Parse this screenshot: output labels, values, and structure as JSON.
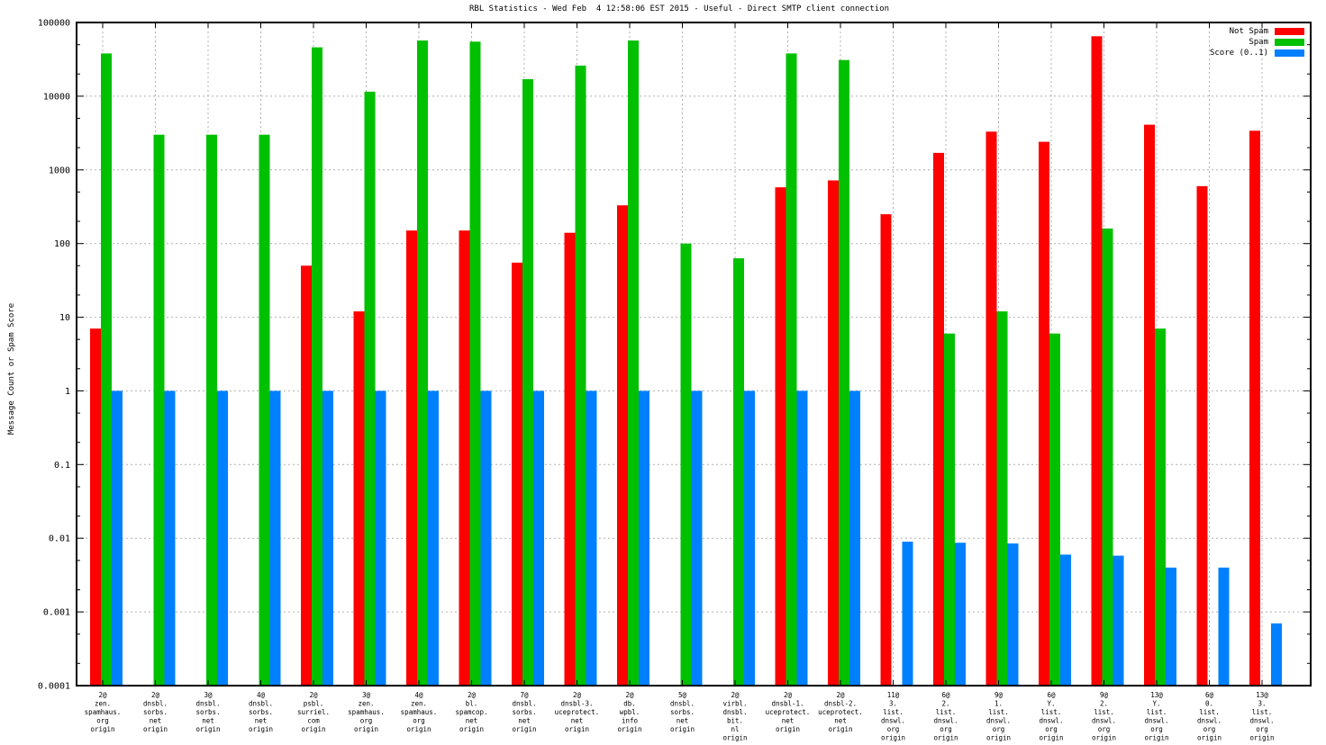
{
  "chart_data": {
    "type": "bar",
    "title": "RBL Statistics - Wed Feb  4 12:58:06 EST 2015 - Useful - Direct SMTP client connection",
    "xlabel": "",
    "ylabel": "Message Count or Spam Score",
    "y_scale": "log",
    "ylim": [
      0.0001,
      100000
    ],
    "y_ticks": [
      "100000",
      "10000",
      "1000",
      "100",
      "10",
      "1",
      "0.1",
      "0.01",
      "0.001",
      "0.0001"
    ],
    "grid": true,
    "legend_position": "top-right",
    "background": "#ffffff",
    "categories": [
      "2@zen.spamhaus.org origin",
      "2@dnsbl.sorbs.net origin",
      "3@dnsbl.sorbs.net origin",
      "4@dnsbl.sorbs.net origin",
      "2@psbl.surriel.com origin",
      "3@zen.spamhaus.org origin",
      "4@zen.spamhaus.org origin",
      "2@bl.spamcop.net origin",
      "7@dnsbl.sorbs.net origin",
      "2@dnsbl-3.uceprotect.net origin",
      "2@db.wpbl.info origin",
      "5@dnsbl.sorbs.net origin",
      "2@virbl.dnsbl.bit.nl origin",
      "2@dnsbl-1.uceprotect.net origin",
      "2@dnsbl-2.uceprotect.net origin",
      "11@3.list.dnswl.org origin",
      "6@2.list.dnswl.org origin",
      "9@1.list.dnswl.org origin",
      "6@Y.list.dnswl.org origin",
      "9@2.list.dnswl.org origin",
      "13@Y.list.dnswl.org origin",
      "6@0.list.dnswl.org origin",
      "13@3.list.dnswl.org origin"
    ],
    "category_lines": [
      [
        "2@",
        "zen.",
        "spamhaus.",
        "org",
        "origin"
      ],
      [
        "2@",
        "dnsbl.",
        "sorbs.",
        "net",
        "origin"
      ],
      [
        "3@",
        "dnsbl.",
        "sorbs.",
        "net",
        "origin"
      ],
      [
        "4@",
        "dnsbl.",
        "sorbs.",
        "net",
        "origin"
      ],
      [
        "2@",
        "psbl.",
        "surriel.",
        "com",
        "origin"
      ],
      [
        "3@",
        "zen.",
        "spamhaus.",
        "org",
        "origin"
      ],
      [
        "4@",
        "zen.",
        "spamhaus.",
        "org",
        "origin"
      ],
      [
        "2@",
        "bl.",
        "spamcop.",
        "net",
        "origin"
      ],
      [
        "7@",
        "dnsbl.",
        "sorbs.",
        "net",
        "origin"
      ],
      [
        "2@",
        "dnsbl-3.",
        "uceprotect.",
        "net",
        "origin"
      ],
      [
        "2@",
        "db.",
        "wpbl.",
        "info",
        "origin"
      ],
      [
        "5@",
        "dnsbl.",
        "sorbs.",
        "net",
        "origin"
      ],
      [
        "2@",
        "virbl.",
        "dnsbl.",
        "bit.",
        "nl",
        "origin"
      ],
      [
        "2@",
        "dnsbl-1.",
        "uceprotect.",
        "net",
        "origin"
      ],
      [
        "2@",
        "dnsbl-2.",
        "uceprotect.",
        "net",
        "origin"
      ],
      [
        "11@",
        "3.",
        "list.",
        "dnswl.",
        "org",
        "origin"
      ],
      [
        "6@",
        "2.",
        "list.",
        "dnswl.",
        "org",
        "origin"
      ],
      [
        "9@",
        "1.",
        "list.",
        "dnswl.",
        "org",
        "origin"
      ],
      [
        "6@",
        "Y.",
        "list.",
        "dnswl.",
        "org",
        "origin"
      ],
      [
        "9@",
        "2.",
        "list.",
        "dnswl.",
        "org",
        "origin"
      ],
      [
        "13@",
        "Y.",
        "list.",
        "dnswl.",
        "org",
        "origin"
      ],
      [
        "6@",
        "0.",
        "list.",
        "dnswl.",
        "org",
        "origin"
      ],
      [
        "13@",
        "3.",
        "list.",
        "dnswl.",
        "org",
        "origin"
      ]
    ],
    "series": [
      {
        "name": "Not Spam",
        "color": "#ff0000",
        "values": [
          7,
          null,
          null,
          null,
          50,
          12,
          150,
          150,
          55,
          140,
          330,
          null,
          null,
          580,
          720,
          250,
          1700,
          3300,
          2400,
          65000,
          4100,
          600,
          3400
        ]
      },
      {
        "name": "Spam",
        "color": "#00c000",
        "values": [
          38000,
          3000,
          3000,
          3000,
          46000,
          11500,
          57000,
          55000,
          17000,
          26000,
          57000,
          100,
          63,
          38000,
          31000,
          null,
          6,
          12,
          6,
          160,
          7,
          null,
          null
        ]
      },
      {
        "name": "Score (0..1)",
        "color": "#0080ff",
        "values": [
          1,
          1,
          1,
          1,
          1,
          1,
          1,
          1,
          1,
          1,
          1,
          1,
          1,
          1,
          1,
          0.009,
          0.0087,
          0.0085,
          0.006,
          0.0058,
          0.004,
          0.004,
          0.0007
        ]
      }
    ]
  }
}
